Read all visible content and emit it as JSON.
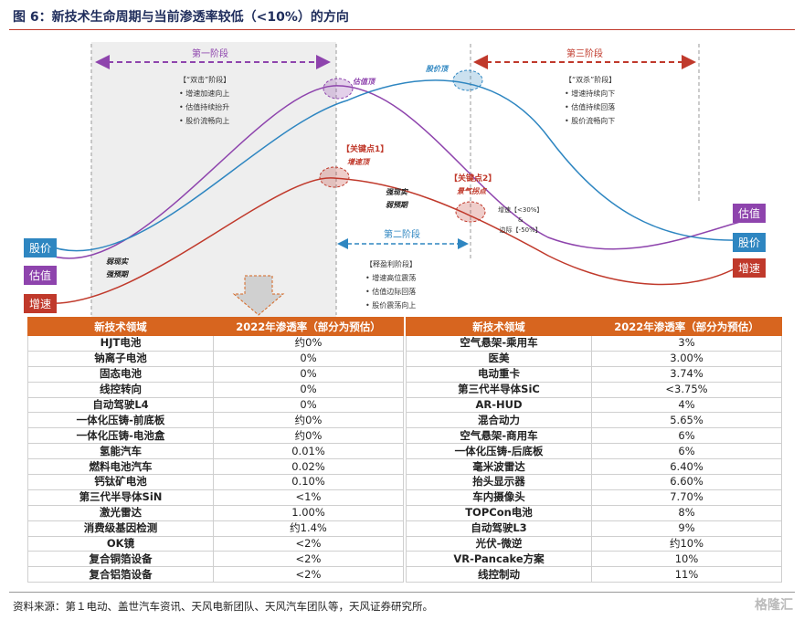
{
  "title": "图 6：新技术生命周期与当前渗透率较低（<10%）的方向",
  "legend": {
    "left": {
      "price": "股价",
      "valuation": "估值",
      "growth": "增速"
    },
    "right": {
      "valuation": "估值",
      "price": "股价",
      "growth": "增速"
    }
  },
  "colors": {
    "price": "#2e86c1",
    "valuation": "#8e44ad",
    "growth": "#c0392b",
    "header": "#d7651f"
  },
  "stages": {
    "s1": {
      "label": "第一阶段",
      "heading": "【“双击”阶段】",
      "items": [
        "增速加速向上",
        "估值持续抬升",
        "股价流畅向上"
      ]
    },
    "s2": {
      "label": "第二阶段",
      "heading": "【释盈利阶段】",
      "items": [
        "增速高位震荡",
        "估值边际回落",
        "股价震荡向上"
      ]
    },
    "s3": {
      "label": "第三阶段",
      "heading": "【“双杀”阶段】",
      "items": [
        "增速持续向下",
        "估值持续回落",
        "股价流畅向下"
      ]
    }
  },
  "points": {
    "valuation_top": "估值顶",
    "price_top": "股价顶",
    "growth_top": "增速顶",
    "sentiment": "景气拐点"
  },
  "keys": {
    "k1": "【关键点1】",
    "k2": "【关键点2】"
  },
  "annotations": {
    "weak": "弱现实\n强预期",
    "strong": "强现实\n弱预期",
    "k2_detail_1": "增速【<30%】",
    "k2_detail_amp": "&",
    "k2_detail_2": "边际【-50%】"
  },
  "table": {
    "headers": [
      "新技术领域",
      "2022年渗透率（部分为预估）"
    ],
    "left": [
      [
        "HJT电池",
        "约0%"
      ],
      [
        "钠离子电池",
        "0%"
      ],
      [
        "固态电池",
        "0%"
      ],
      [
        "线控转向",
        "0%"
      ],
      [
        "自动驾驶L4",
        "0%"
      ],
      [
        "一体化压铸-前底板",
        "约0%"
      ],
      [
        "一体化压铸-电池盒",
        "约0%"
      ],
      [
        "氢能汽车",
        "0.01%"
      ],
      [
        "燃料电池汽车",
        "0.02%"
      ],
      [
        "钙钛矿电池",
        "0.10%"
      ],
      [
        "第三代半导体SiN",
        "<1%"
      ],
      [
        "激光雷达",
        "1.00%"
      ],
      [
        "消费级基因检测",
        "约1.4%"
      ],
      [
        "OK镜",
        "<2%"
      ],
      [
        "复合铜箔设备",
        "<2%"
      ],
      [
        "复合铝箔设备",
        "<2%"
      ]
    ],
    "right": [
      [
        "空气悬架-乘用车",
        "3%"
      ],
      [
        "医美",
        "3.00%"
      ],
      [
        "电动重卡",
        "3.74%"
      ],
      [
        "第三代半导体SiC",
        "<3.75%"
      ],
      [
        "AR-HUD",
        "4%"
      ],
      [
        "混合动力",
        "5.65%"
      ],
      [
        "空气悬架-商用车",
        "6%"
      ],
      [
        "一体化压铸-后底板",
        "6%"
      ],
      [
        "毫米波雷达",
        "6.40%"
      ],
      [
        "抬头显示器",
        "6.60%"
      ],
      [
        "车内摄像头",
        "7.70%"
      ],
      [
        "TOPCon电池",
        "8%"
      ],
      [
        "自动驾驶L3",
        "9%"
      ],
      [
        "光伏-微逆",
        "约10%"
      ],
      [
        "VR-Pancake方案",
        "10%"
      ],
      [
        "线控制动",
        "11%"
      ]
    ]
  },
  "source": "资料来源：第１电动、盖世汽车资讯、天风电新团队、天风汽车团队等，天风证券研究所。",
  "watermark": "格隆汇"
}
